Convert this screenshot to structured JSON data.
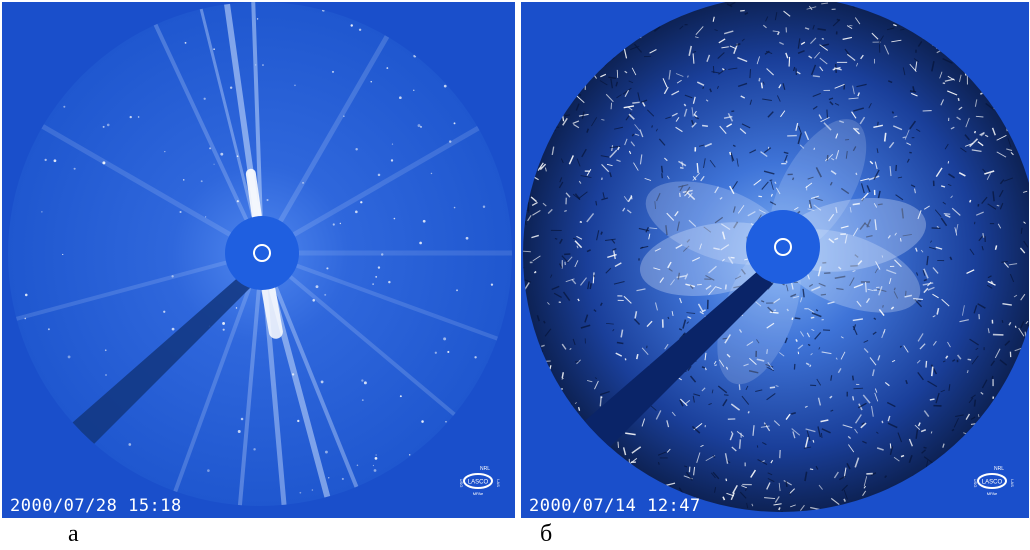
{
  "panels": [
    {
      "id": "a",
      "timestamp": "2000/07/28 15:18",
      "caption": "а",
      "logo": {
        "top": "NRL",
        "center": "LASCO",
        "bottom": "MPAe",
        "left": "USG",
        "right": "LAS"
      }
    },
    {
      "id": "b",
      "timestamp": "2000/07/14 12:47",
      "caption": "б",
      "logo": {
        "top": "NRL",
        "center": "LASCO",
        "bottom": "MPAe",
        "left": "USG",
        "right": "LAS"
      }
    }
  ],
  "colors": {
    "background_blue": "#1a4fcb",
    "disk_blue": "#1d5ad6",
    "occulter_blue": "#1f5fe0",
    "streak_white": "#ffffff",
    "shadow_blue": "#0b2a7a"
  }
}
